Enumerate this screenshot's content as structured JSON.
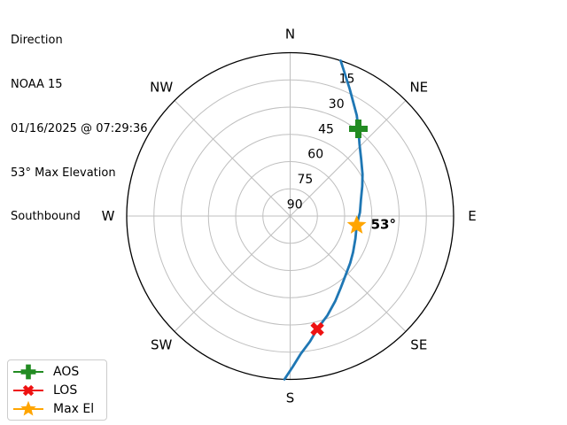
{
  "header": {
    "lines": [
      "Direction",
      "NOAA 15",
      "01/16/2025 @ 07:29:36",
      "53° Max Elevation",
      "Southbound"
    ]
  },
  "colors": {
    "background": "#ffffff",
    "track_blue": "#1f77b4",
    "aos_green": "#228B22",
    "los_red": "#ee1111",
    "max_el_orange": "#ffa500",
    "grid_gray": "#bfbfbf",
    "outline_black": "#000000",
    "legend_border": "#cccccc"
  },
  "legend": {
    "items": [
      {
        "id": "aos",
        "label": "AOS",
        "marker": "plus",
        "color": "#228B22"
      },
      {
        "id": "los",
        "label": "LOS",
        "marker": "x",
        "color": "#ee1111"
      },
      {
        "id": "max-el",
        "label": "Max El",
        "marker": "star",
        "color": "#ffa500"
      }
    ]
  },
  "chart_data": {
    "type": "polar-track",
    "title": "Direction",
    "compass_labels": [
      "N",
      "NE",
      "E",
      "SE",
      "S",
      "SW",
      "W",
      "NW"
    ],
    "compass_azimuths_deg": [
      0,
      45,
      90,
      135,
      180,
      225,
      270,
      315
    ],
    "elevation_range": [
      0,
      90
    ],
    "elevation_rings_deg": [
      15,
      30,
      45,
      60,
      75
    ],
    "elevation_tick_labels": [
      "15",
      "30",
      "45",
      "60",
      "75",
      "90"
    ],
    "elevation_tick_values": [
      15,
      30,
      45,
      60,
      75,
      90
    ],
    "radial_label_azimuth_deg": 22.5,
    "track_points_az_el": [
      [
        18,
        0
      ],
      [
        25,
        12.5
      ],
      [
        33.5,
        23.5
      ],
      [
        38,
        29
      ],
      [
        44,
        35
      ],
      [
        51.5,
        40
      ],
      [
        60,
        44
      ],
      [
        67.5,
        47
      ],
      [
        77,
        50
      ],
      [
        87,
        51.5
      ],
      [
        98,
        53
      ],
      [
        109,
        52
      ],
      [
        120,
        50
      ],
      [
        128,
        48
      ],
      [
        136.5,
        45.5
      ],
      [
        145,
        41.5
      ],
      [
        152,
        37
      ],
      [
        159.5,
        31.5
      ],
      [
        166.5,
        26
      ],
      [
        171,
        20
      ],
      [
        175.5,
        14
      ],
      [
        179,
        7
      ],
      [
        182,
        0
      ]
    ],
    "markers": [
      {
        "id": "aos",
        "label": "AOS",
        "shape": "plus",
        "color": "#228B22",
        "azimuth_deg": 38,
        "elevation_deg": 29
      },
      {
        "id": "max-el",
        "label": "Max El",
        "shape": "star",
        "color": "#ffa500",
        "azimuth_deg": 98,
        "elevation_deg": 53,
        "annotation": "53°"
      },
      {
        "id": "los",
        "label": "LOS",
        "shape": "x",
        "color": "#ee1111",
        "azimuth_deg": 166.5,
        "elevation_deg": 26
      }
    ]
  }
}
